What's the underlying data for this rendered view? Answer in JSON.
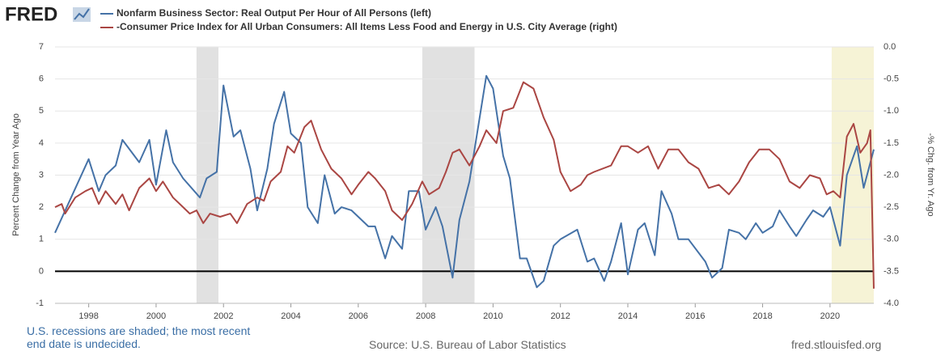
{
  "logo": "FRED",
  "chart_data": {
    "type": "line",
    "y_label": "Percent Change from Year Ago",
    "y2_label": "-% Chg. from Yr. Ago",
    "note": "U.S. recessions are shaded; the most recent end date is undecided.",
    "source": "Source: U.S. Bureau of Labor Statistics",
    "site": "fred.stlouisfed.org",
    "xlim": [
      1997,
      2021.3
    ],
    "xticks": [
      1998,
      2000,
      2002,
      2004,
      2006,
      2008,
      2010,
      2012,
      2014,
      2016,
      2018,
      2020
    ],
    "ylim": [
      -1,
      7
    ],
    "yticks": [
      -1,
      0,
      1,
      2,
      3,
      4,
      5,
      6,
      7
    ],
    "y2lim": [
      -4,
      0
    ],
    "y2ticks": [
      {
        "value": -4,
        "label": "-4.0"
      },
      {
        "value": -3.5,
        "label": "-3.5"
      },
      {
        "value": -3,
        "label": "-3.0"
      },
      {
        "value": -2.5,
        "label": "-2.5"
      },
      {
        "value": -2,
        "label": "-2.0"
      },
      {
        "value": -1.5,
        "label": "-1.5"
      },
      {
        "value": -1,
        "label": "-1.0"
      },
      {
        "value": -0.5,
        "label": "-0.5"
      },
      {
        "value": 0,
        "label": "0.0"
      }
    ],
    "grid": true,
    "recessions": [
      [
        2001.2,
        2001.85
      ],
      [
        2007.9,
        2009.45
      ]
    ],
    "recession_color": "#e1e1e1",
    "undecided_recession": [
      2020.05,
      2021.3
    ],
    "undecided_color": "#f6f3d6",
    "series": [
      {
        "name": "Nonfarm Business Sector: Real Output Per Hour of All Persons (left)",
        "color": "#4572a7",
        "axis": "y",
        "x": [
          1997.0,
          1998.0,
          1998.3,
          1998.5,
          1998.8,
          1999.0,
          1999.5,
          1999.8,
          2000.0,
          2000.3,
          2000.5,
          2000.8,
          2001.3,
          2001.5,
          2001.8,
          2002.0,
          2002.3,
          2002.5,
          2002.8,
          2003.0,
          2003.3,
          2003.5,
          2003.8,
          2004.0,
          2004.3,
          2004.5,
          2004.8,
          2005.0,
          2005.3,
          2005.5,
          2005.8,
          2006.3,
          2006.5,
          2006.8,
          2007.0,
          2007.3,
          2007.5,
          2007.8,
          2008.0,
          2008.3,
          2008.5,
          2008.8,
          2009.0,
          2009.3,
          2009.8,
          2010.0,
          2010.3,
          2010.5,
          2010.8,
          2011.0,
          2011.3,
          2011.5,
          2011.8,
          2012.0,
          2012.5,
          2012.8,
          2013.0,
          2013.3,
          2013.5,
          2013.8,
          2014.0,
          2014.3,
          2014.5,
          2014.8,
          2015.0,
          2015.3,
          2015.5,
          2015.8,
          2016.3,
          2016.5,
          2016.8,
          2017.0,
          2017.3,
          2017.5,
          2017.8,
          2018.0,
          2018.3,
          2018.5,
          2018.8,
          2019.0,
          2019.3,
          2019.5,
          2019.8,
          2020.0,
          2020.3,
          2020.5,
          2020.8,
          2021.0,
          2021.3
        ],
        "values": [
          1.2,
          3.5,
          2.5,
          3.0,
          3.3,
          4.1,
          3.4,
          4.1,
          2.7,
          4.4,
          3.4,
          2.9,
          2.3,
          2.9,
          3.1,
          5.8,
          4.2,
          4.4,
          3.2,
          1.9,
          3.2,
          4.6,
          5.6,
          4.3,
          4.0,
          2.0,
          1.5,
          3.0,
          1.8,
          2.0,
          1.9,
          1.4,
          1.4,
          0.4,
          1.1,
          0.7,
          2.5,
          2.5,
          1.3,
          2.0,
          1.4,
          -0.2,
          1.6,
          2.8,
          6.1,
          5.7,
          3.6,
          2.9,
          0.4,
          0.4,
          -0.5,
          -0.3,
          0.8,
          1.0,
          1.3,
          0.3,
          0.4,
          -0.3,
          0.3,
          1.5,
          -0.1,
          1.3,
          1.5,
          0.5,
          2.5,
          1.8,
          1.0,
          1.0,
          0.3,
          -0.2,
          0.1,
          1.3,
          1.2,
          1.0,
          1.5,
          1.2,
          1.4,
          1.9,
          1.4,
          1.1,
          1.6,
          1.9,
          1.7,
          2.0,
          0.8,
          3.0,
          3.9,
          2.6,
          3.8
        ]
      },
      {
        "name": "-Consumer Price Index for All Urban Consumers: All Items Less Food and Energy in U.S. City Average (right)",
        "color": "#aa4643",
        "axis": "y2",
        "x": [
          1997.0,
          1997.2,
          1997.3,
          1997.6,
          1997.9,
          1998.1,
          1998.3,
          1998.5,
          1998.8,
          1999.0,
          1999.2,
          1999.5,
          1999.8,
          2000.0,
          2000.2,
          2000.5,
          2000.8,
          2001.0,
          2001.2,
          2001.4,
          2001.6,
          2001.9,
          2002.2,
          2002.4,
          2002.7,
          2003.0,
          2003.2,
          2003.4,
          2003.7,
          2003.9,
          2004.1,
          2004.4,
          2004.6,
          2004.9,
          2005.2,
          2005.5,
          2005.8,
          2006.0,
          2006.3,
          2006.5,
          2006.8,
          2007.0,
          2007.3,
          2007.6,
          2007.9,
          2008.1,
          2008.4,
          2008.6,
          2008.8,
          2009.0,
          2009.3,
          2009.6,
          2009.8,
          2010.1,
          2010.3,
          2010.6,
          2010.9,
          2011.2,
          2011.5,
          2011.8,
          2012.0,
          2012.3,
          2012.6,
          2012.8,
          2013.0,
          2013.5,
          2013.8,
          2014.0,
          2014.3,
          2014.6,
          2014.9,
          2015.2,
          2015.5,
          2015.8,
          2016.1,
          2016.4,
          2016.7,
          2017.0,
          2017.3,
          2017.6,
          2017.9,
          2018.2,
          2018.5,
          2018.8,
          2019.1,
          2019.4,
          2019.7,
          2019.9,
          2020.1,
          2020.3,
          2020.5,
          2020.7,
          2020.9,
          2021.1,
          2021.2,
          2021.3
        ],
        "values": [
          -2.5,
          -2.45,
          -2.6,
          -2.35,
          -2.25,
          -2.2,
          -2.45,
          -2.25,
          -2.45,
          -2.3,
          -2.55,
          -2.2,
          -2.05,
          -2.25,
          -2.1,
          -2.35,
          -2.5,
          -2.6,
          -2.55,
          -2.75,
          -2.6,
          -2.65,
          -2.6,
          -2.75,
          -2.45,
          -2.35,
          -2.4,
          -2.1,
          -1.95,
          -1.55,
          -1.65,
          -1.25,
          -1.15,
          -1.6,
          -1.9,
          -2.05,
          -2.3,
          -2.15,
          -1.95,
          -2.05,
          -2.25,
          -2.55,
          -2.7,
          -2.45,
          -2.1,
          -2.3,
          -2.2,
          -1.95,
          -1.65,
          -1.6,
          -1.85,
          -1.55,
          -1.3,
          -1.5,
          -1.0,
          -0.95,
          -0.55,
          -0.65,
          -1.1,
          -1.45,
          -1.95,
          -2.25,
          -2.15,
          -2.0,
          -1.95,
          -1.85,
          -1.55,
          -1.55,
          -1.65,
          -1.55,
          -1.9,
          -1.6,
          -1.6,
          -1.8,
          -1.9,
          -2.2,
          -2.15,
          -2.3,
          -2.1,
          -1.8,
          -1.6,
          -1.6,
          -1.75,
          -2.1,
          -2.2,
          -2.0,
          -2.05,
          -2.3,
          -2.25,
          -2.35,
          -1.4,
          -1.2,
          -1.65,
          -1.5,
          -1.3,
          -3.77
        ]
      }
    ]
  }
}
